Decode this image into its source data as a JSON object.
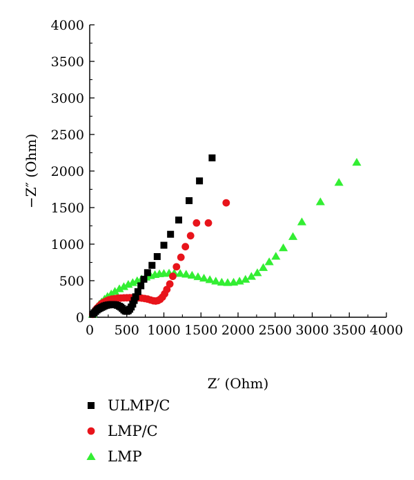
{
  "chart_data": {
    "type": "scatter",
    "xlabel": "Z′ (Ohm)",
    "ylabel": "−Z″ (Ohm)",
    "xlim": [
      0,
      4000
    ],
    "ylim": [
      0,
      4000
    ],
    "x_ticks": [
      0,
      500,
      1000,
      1500,
      2000,
      2500,
      3000,
      3500,
      4000
    ],
    "y_ticks": [
      0,
      500,
      1000,
      1500,
      2000,
      2500,
      3000,
      3500,
      4000
    ],
    "grid": false,
    "legend_position": "bottom-left, below the plot",
    "series": [
      {
        "name": "ULMP/C",
        "marker": "square",
        "color": "#000000",
        "points": [
          [
            40,
            40
          ],
          [
            60,
            60
          ],
          [
            80,
            80
          ],
          [
            100,
            100
          ],
          [
            120,
            115
          ],
          [
            140,
            125
          ],
          [
            160,
            135
          ],
          [
            180,
            145
          ],
          [
            200,
            155
          ],
          [
            225,
            163
          ],
          [
            250,
            168
          ],
          [
            275,
            172
          ],
          [
            300,
            174
          ],
          [
            325,
            173
          ],
          [
            350,
            170
          ],
          [
            375,
            162
          ],
          [
            400,
            150
          ],
          [
            420,
            138
          ],
          [
            440,
            120
          ],
          [
            460,
            100
          ],
          [
            480,
            85
          ],
          [
            500,
            80
          ],
          [
            520,
            90
          ],
          [
            540,
            110
          ],
          [
            560,
            140
          ],
          [
            580,
            180
          ],
          [
            600,
            230
          ],
          [
            620,
            280
          ],
          [
            650,
            350
          ],
          [
            690,
            430
          ],
          [
            730,
            520
          ],
          [
            780,
            610
          ],
          [
            840,
            710
          ],
          [
            910,
            830
          ],
          [
            1000,
            985
          ],
          [
            1090,
            1135
          ],
          [
            1200,
            1330
          ],
          [
            1340,
            1595
          ],
          [
            1480,
            1865
          ],
          [
            1650,
            2180
          ]
        ]
      },
      {
        "name": "LMP/C",
        "marker": "circle",
        "color": "#e8141b",
        "points": [
          [
            40,
            40
          ],
          [
            60,
            70
          ],
          [
            80,
            100
          ],
          [
            100,
            125
          ],
          [
            125,
            150
          ],
          [
            150,
            175
          ],
          [
            175,
            195
          ],
          [
            200,
            210
          ],
          [
            230,
            225
          ],
          [
            260,
            238
          ],
          [
            300,
            248
          ],
          [
            340,
            255
          ],
          [
            380,
            260
          ],
          [
            420,
            263
          ],
          [
            460,
            265
          ],
          [
            500,
            266
          ],
          [
            540,
            267
          ],
          [
            580,
            268
          ],
          [
            620,
            268
          ],
          [
            660,
            266
          ],
          [
            700,
            262
          ],
          [
            740,
            256
          ],
          [
            780,
            248
          ],
          [
            820,
            236
          ],
          [
            860,
            225
          ],
          [
            890,
            222
          ],
          [
            920,
            228
          ],
          [
            950,
            245
          ],
          [
            980,
            275
          ],
          [
            1010,
            320
          ],
          [
            1040,
            380
          ],
          [
            1080,
            455
          ],
          [
            1120,
            560
          ],
          [
            1170,
            690
          ],
          [
            1230,
            820
          ],
          [
            1290,
            965
          ],
          [
            1360,
            1115
          ],
          [
            1440,
            1290
          ],
          [
            1600,
            1290
          ],
          [
            1840,
            1565
          ]
        ]
      },
      {
        "name": "LMP",
        "marker": "triangle",
        "color": "#33ee33",
        "points": [
          [
            40,
            40
          ],
          [
            60,
            80
          ],
          [
            80,
            115
          ],
          [
            100,
            145
          ],
          [
            130,
            180
          ],
          [
            160,
            210
          ],
          [
            200,
            250
          ],
          [
            240,
            285
          ],
          [
            290,
            320
          ],
          [
            340,
            355
          ],
          [
            400,
            390
          ],
          [
            460,
            420
          ],
          [
            520,
            450
          ],
          [
            580,
            475
          ],
          [
            640,
            500
          ],
          [
            700,
            525
          ],
          [
            760,
            550
          ],
          [
            820,
            570
          ],
          [
            880,
            585
          ],
          [
            940,
            595
          ],
          [
            1000,
            600
          ],
          [
            1070,
            605
          ],
          [
            1140,
            605
          ],
          [
            1220,
            600
          ],
          [
            1300,
            590
          ],
          [
            1380,
            575
          ],
          [
            1460,
            555
          ],
          [
            1540,
            535
          ],
          [
            1620,
            515
          ],
          [
            1700,
            495
          ],
          [
            1780,
            480
          ],
          [
            1860,
            475
          ],
          [
            1940,
            480
          ],
          [
            2020,
            495
          ],
          [
            2100,
            520
          ],
          [
            2180,
            560
          ],
          [
            2260,
            610
          ],
          [
            2340,
            680
          ],
          [
            2420,
            760
          ],
          [
            2510,
            835
          ],
          [
            2610,
            950
          ],
          [
            2740,
            1105
          ],
          [
            2860,
            1305
          ],
          [
            3110,
            1580
          ],
          [
            3360,
            1845
          ],
          [
            3600,
            2120
          ]
        ]
      }
    ]
  }
}
